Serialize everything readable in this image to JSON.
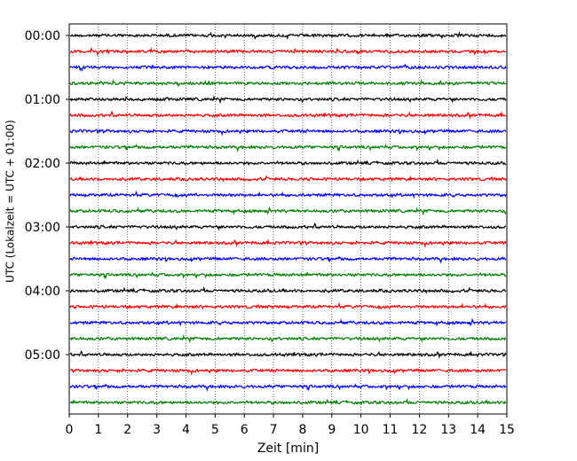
{
  "chart_data": {
    "type": "line",
    "title": "",
    "xlabel": "Zeit  [min]",
    "ylabel": "UTC (Lokalzeit = UTC + 01:00)",
    "xlim": [
      0,
      15
    ],
    "x_ticks": [
      "0",
      "1",
      "2",
      "3",
      "4",
      "5",
      "6",
      "7",
      "8",
      "9",
      "10",
      "11",
      "12",
      "13",
      "14",
      "15"
    ],
    "y_tick_labels": [
      "00:00",
      "01:00",
      "02:00",
      "03:00",
      "04:00",
      "05:00"
    ],
    "rows_per_hour": 4,
    "row_count": 24,
    "row_minutes": 15,
    "row_colors": [
      "#000000",
      "#ff0000",
      "#0000ff",
      "#008000"
    ],
    "grid": "vertical dotted at each minute",
    "legend": "none"
  }
}
